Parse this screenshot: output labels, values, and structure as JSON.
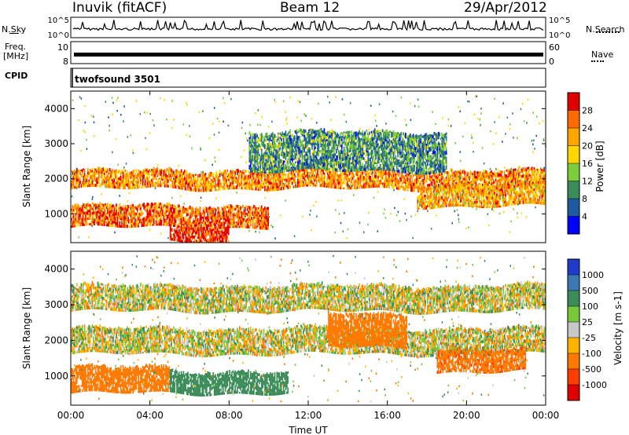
{
  "header": {
    "station": "Inuvik (fitACF)",
    "beam": "Beam 12",
    "date": "29/Apr/2012"
  },
  "top_panels": {
    "nsky_label": "N.Sky",
    "nsky_ticks": [
      "10^5",
      "10^0"
    ],
    "nsearch_label": "N.Search",
    "nsearch_ticks": [
      "10^5",
      "10^0"
    ],
    "freq_label_1": "Freq.",
    "freq_label_2": "[MHz]",
    "freq_ticks": [
      "10",
      "8"
    ],
    "nave_label": "Nave",
    "nave_ticks": [
      "60",
      "0"
    ],
    "cpid_label": "CPID",
    "cpid_value": "twofsound 3501"
  },
  "chart_data": [
    {
      "type": "heatmap",
      "title": "",
      "ylabel": "Slant Range [km]",
      "xlabel": "",
      "ylim": [
        180,
        4500
      ],
      "y_ticks": [
        "1000",
        "2000",
        "3000",
        "4000"
      ],
      "colorbar": {
        "label": "Power [dB]",
        "ticks": [
          "28",
          "24",
          "20",
          "16",
          "12",
          "8",
          "4"
        ],
        "colors": [
          "#e00000",
          "#ff6a00",
          "#ffa500",
          "#ffd700",
          "#7ccc3c",
          "#3c8c5a",
          "#1e5aa0",
          "#0000ff"
        ]
      },
      "bands": [
        {
          "range_km": [
            1700,
            2200
          ],
          "level_db": 22,
          "time_h": [
            0,
            24
          ]
        },
        {
          "range_km": [
            600,
            1200
          ],
          "level_db": 24,
          "time_h": [
            0,
            10
          ]
        },
        {
          "range_km": [
            200,
            600
          ],
          "level_db": 28,
          "time_h": [
            5,
            8
          ]
        },
        {
          "range_km": [
            1200,
            1800
          ],
          "level_db": 20,
          "time_h": [
            17.5,
            24
          ]
        },
        {
          "range_km": [
            2200,
            3300
          ],
          "level_db": 8,
          "time_h": [
            9,
            19
          ]
        }
      ]
    },
    {
      "type": "heatmap",
      "title": "",
      "ylabel": "Slant Range [km]",
      "xlabel": "Time UT",
      "ylim": [
        180,
        4500
      ],
      "y_ticks": [
        "1000",
        "2000",
        "3000",
        "4000"
      ],
      "x_ticks": [
        "00:00",
        "04:00",
        "08:00",
        "12:00",
        "16:00",
        "20:00",
        "00:00"
      ],
      "colorbar": {
        "label": "Velocity [m s-1]",
        "ticks": [
          "1000",
          "500",
          "100",
          "25",
          "-25",
          "-100",
          "-500",
          "-1000"
        ],
        "colors": [
          "#1e3cc8",
          "#3c78b4",
          "#3c8c5a",
          "#78c83c",
          "#c8c8c8",
          "#ffb400",
          "#ff7800",
          "#ff3c00",
          "#e00000"
        ]
      },
      "bands": [
        {
          "range_km": [
            1600,
            2300
          ],
          "velocity": 0,
          "time_h": [
            0,
            24
          ]
        },
        {
          "range_km": [
            500,
            1200
          ],
          "velocity": -300,
          "time_h": [
            0,
            5
          ]
        },
        {
          "range_km": [
            500,
            1100
          ],
          "velocity": 300,
          "time_h": [
            5,
            11
          ]
        },
        {
          "range_km": [
            1100,
            1700
          ],
          "velocity": -400,
          "time_h": [
            18.5,
            23
          ]
        },
        {
          "range_km": [
            1800,
            2700
          ],
          "velocity": -300,
          "time_h": [
            13,
            17
          ]
        },
        {
          "range_km": [
            2800,
            3500
          ],
          "velocity": 0,
          "time_h": [
            0,
            24
          ]
        }
      ]
    }
  ]
}
